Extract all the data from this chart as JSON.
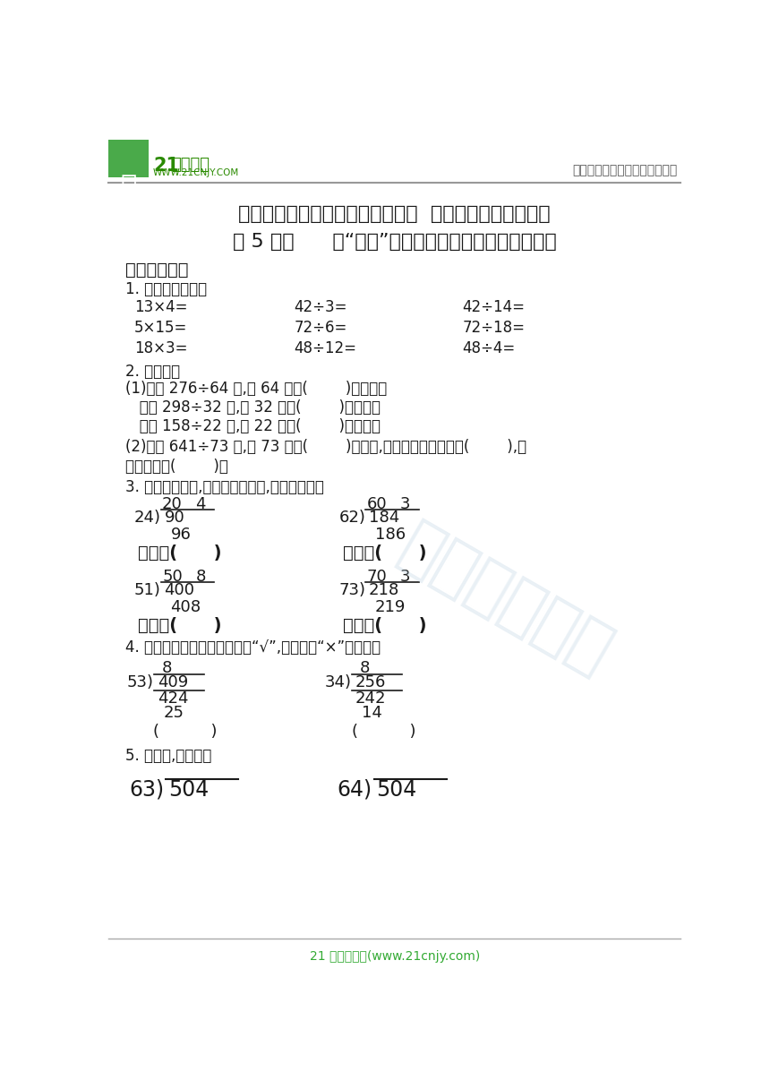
{
  "bg_color": "#ffffff",
  "title1": "四年级数学上册一课一练第二单元  两、三位数除以两位数",
  "title2": "第 5 课时      用“四舍”法把除数看作接近的整十数试商",
  "section1": "《基础巩固》",
  "q1_label": "1. 直接写出得数。",
  "q1_items": [
    [
      "13×4=",
      "42÷3=",
      "42÷14="
    ],
    [
      "5×15=",
      "72÷6=",
      "72÷18="
    ],
    [
      "18×3=",
      "48÷12=",
      "48÷4="
    ]
  ],
  "q2_label": "2. 填空题。",
  "q2_text1": "(1)计算 276÷64 时,把 64 看作(        )来试商；",
  "q2_text2": "   计算 298÷32 时,把 32 看作(        )来试商；",
  "q2_text3": "   计算 158÷22 时,把 22 看作(        )来试商。",
  "q2_text4": "(2)计算 641÷73 时,把 73 看作(        )来试商,但可能会出现初商偏(        ),就",
  "q2_text5": "要把初商调(        )。",
  "q3_label": "3. 根据试商情况,说出各题应商几,填在括号里。",
  "q4_label": "4. 下面的计算对吗？正确的画“√”,错误的画“×”并改正。",
  "q5_label": "5. 算一算,比一比。",
  "footer_text": "21 世纪教育网(www.21cnjy.com)"
}
